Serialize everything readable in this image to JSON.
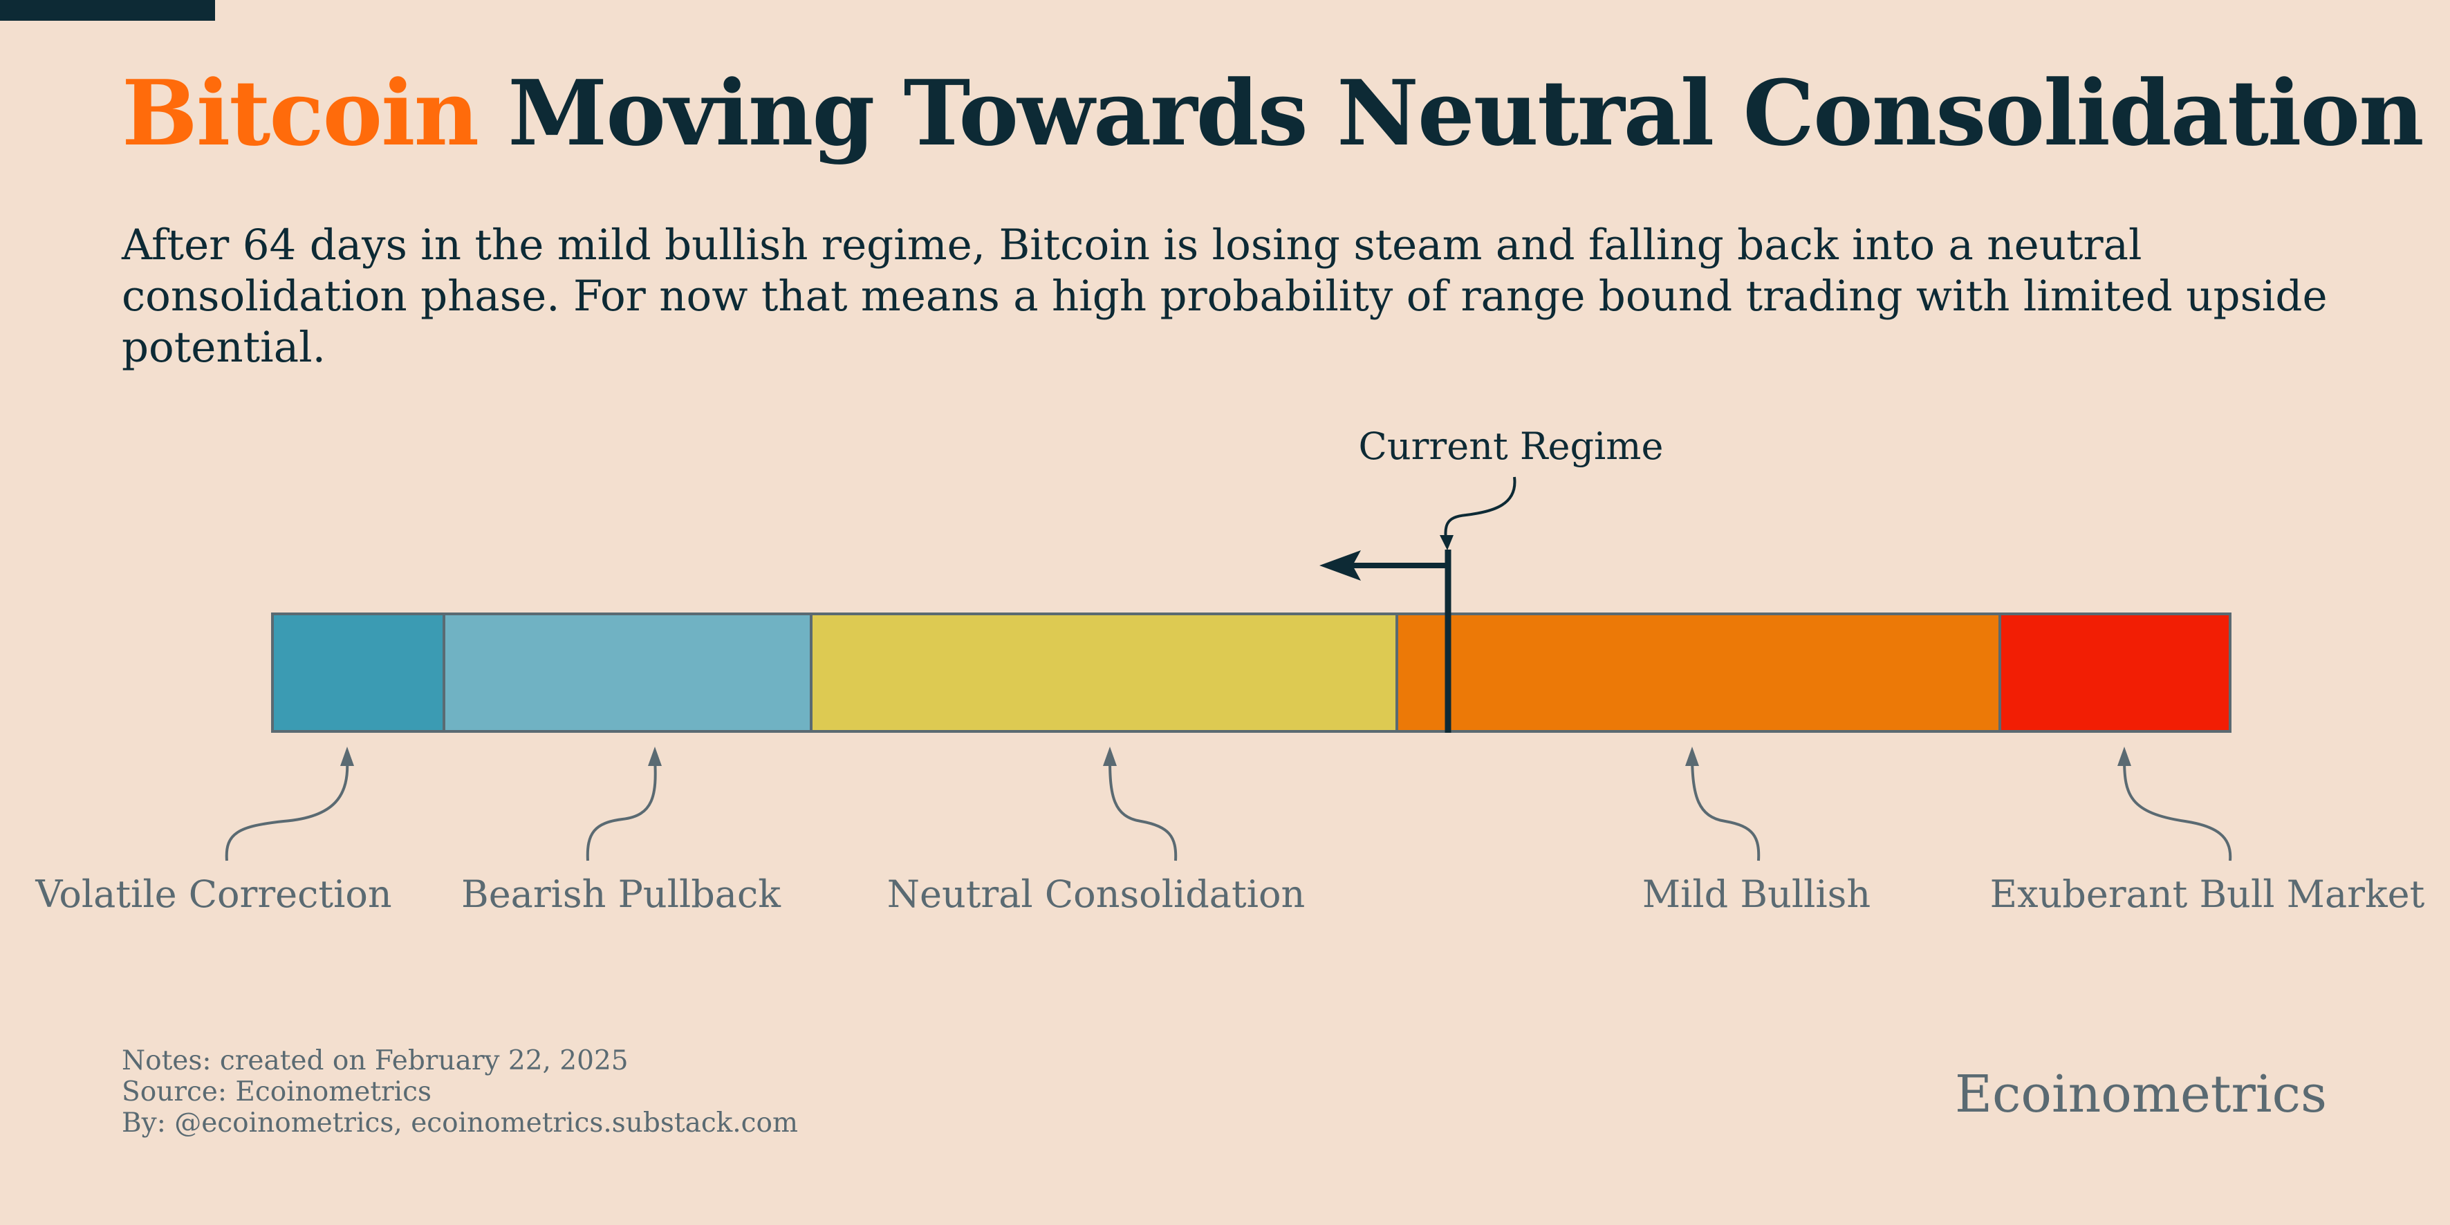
{
  "title": {
    "accent": "Bitcoin",
    "rest": "Moving Towards Neutral Consolidation"
  },
  "subtitle": "After 64 days in the mild bullish regime, Bitcoin is losing steam and falling back into a neutral consolidation phase. For now that means a high probability of range bound trading with limited upside potential.",
  "regimes": [
    {
      "label": "Volatile Correction",
      "color": "#3b9bb3"
    },
    {
      "label": "Bearish Pullback",
      "color": "#70b2c3"
    },
    {
      "label": "Neutral Consolidation",
      "color": "#ddca52"
    },
    {
      "label": "Mild Bullish",
      "color": "#ec7907"
    },
    {
      "label": "Exuberant Bull Market",
      "color": "#f21e04"
    }
  ],
  "current_marker": {
    "label": "Current Regime",
    "direction": "left"
  },
  "notes": [
    "Notes: created on February 22, 2025",
    "Source: Ecoinometrics",
    "By: @ecoinometrics, ecoinometrics.substack.com"
  ],
  "brand": "Ecoinometrics",
  "colors": {
    "background": "#f3dfcf",
    "dark": "#0d2a35",
    "accent": "#ff6b0b",
    "muted": "#5a6a72"
  }
}
